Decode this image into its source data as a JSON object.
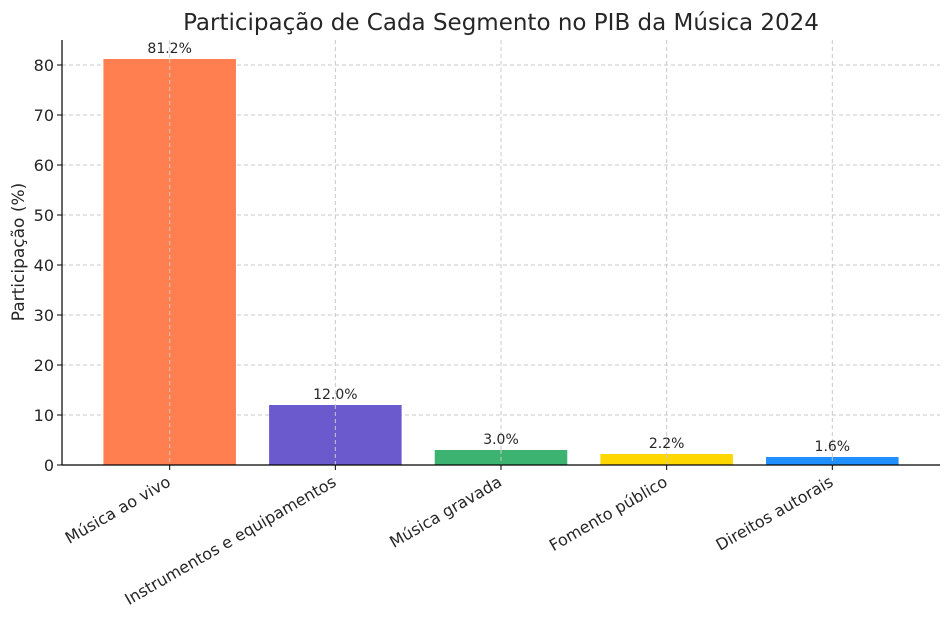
{
  "chart_data": {
    "type": "bar",
    "title": "Participação de Cada Segmento no PIB da Música 2024",
    "xlabel": "",
    "ylabel": "Participação (%)",
    "categories": [
      "Música ao vivo",
      "Instrumentos e equipamentos",
      "Música gravada",
      "Fomento público",
      "Direitos autorais"
    ],
    "values": [
      81.2,
      12.0,
      3.0,
      2.2,
      1.6
    ],
    "value_labels": [
      "81.2%",
      "12.0%",
      "3.0%",
      "2.2%",
      "1.6%"
    ],
    "colors": [
      "#ff7f50",
      "#6a5acd",
      "#3cb371",
      "#ffd700",
      "#1e90ff"
    ],
    "ylim": [
      0,
      85
    ],
    "yticks": [
      0,
      10,
      20,
      30,
      40,
      50,
      60,
      70,
      80
    ],
    "grid": true,
    "legend": "none"
  }
}
